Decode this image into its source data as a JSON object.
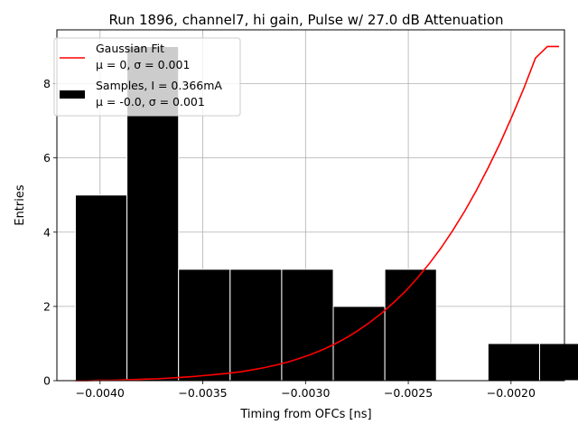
{
  "chart_data": {
    "type": "bar",
    "title": "Run 1896, channel7, hi gain, Pulse w/ 27.0 dB Attenuation",
    "xlabel": "Timing from OFCs [ns]",
    "ylabel": "Entries",
    "xlim": [
      -0.00421,
      -0.00174
    ],
    "ylim": [
      0,
      9.45
    ],
    "grid": true,
    "legend_position": "top-left",
    "xticks": [
      -0.004,
      -0.0035,
      -0.003,
      -0.0025,
      -0.002
    ],
    "xtick_labels": [
      "−0.0040",
      "−0.0035",
      "−0.0030",
      "−0.0025",
      "−0.0020"
    ],
    "yticks": [
      0,
      2,
      4,
      6,
      8
    ],
    "ytick_labels": [
      "0",
      "2",
      "4",
      "6",
      "8"
    ],
    "histogram": {
      "name": "Samples, I = 0.366mA",
      "stats": "μ = -0.0, σ = 0.001",
      "color": "#000000",
      "bin_edges": [
        -0.00412,
        -0.003869,
        -0.003618,
        -0.003367,
        -0.003116,
        -0.002865,
        -0.002614,
        -0.002363,
        -0.002112,
        -0.001861,
        -0.00161
      ],
      "counts": [
        5,
        9,
        3,
        3,
        3,
        2,
        3,
        0,
        1,
        1
      ]
    },
    "fit": {
      "name": "Gaussian Fit",
      "stats": "μ = 0, σ = 0.001",
      "color": "#ff0000",
      "x": [
        -0.00412,
        -0.004063,
        -0.004005,
        -0.003948,
        -0.00389,
        -0.003833,
        -0.003776,
        -0.003718,
        -0.003661,
        -0.003603,
        -0.003546,
        -0.003489,
        -0.003431,
        -0.003374,
        -0.003316,
        -0.003259,
        -0.003201,
        -0.003144,
        -0.003087,
        -0.003029,
        -0.002972,
        -0.002914,
        -0.002857,
        -0.0028,
        -0.002742,
        -0.002685,
        -0.002627,
        -0.00257,
        -0.002512,
        -0.002455,
        -0.002398,
        -0.00234,
        -0.002283,
        -0.002225,
        -0.002168,
        -0.002111,
        -0.002053,
        -0.001996,
        -0.001938,
        -0.001881,
        -0.001823,
        -0.001766
      ],
      "y": [
        0.0,
        0.0,
        0.01,
        0.01,
        0.02,
        0.03,
        0.04,
        0.05,
        0.07,
        0.09,
        0.11,
        0.14,
        0.17,
        0.2,
        0.24,
        0.29,
        0.35,
        0.42,
        0.5,
        0.6,
        0.71,
        0.84,
        0.99,
        1.16,
        1.36,
        1.58,
        1.83,
        2.11,
        2.42,
        2.77,
        3.15,
        3.58,
        4.05,
        4.57,
        5.13,
        5.74,
        6.4,
        7.11,
        7.87,
        8.69,
        9.0,
        9.0
      ]
    }
  }
}
